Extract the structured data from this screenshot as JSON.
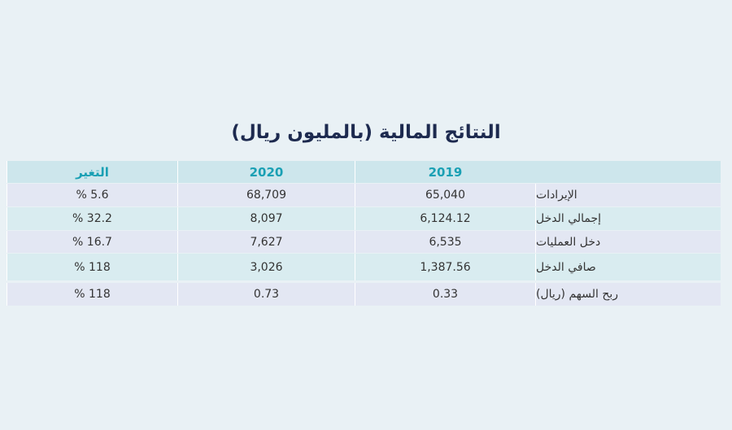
{
  "title": "النتائج المالية (بالمليون ريال)",
  "table": {
    "header": [
      "2019",
      "2020",
      "التغير"
    ],
    "rows": [
      [
        "الإيرادات",
        "65,040",
        "68,709",
        "% 5.6"
      ],
      [
        "إجمالي الدخل",
        "6,124.12",
        "8,097",
        "% 32.2"
      ],
      [
        "دخل العمليات",
        "6,535",
        "7,627",
        "% 16.7"
      ],
      [
        "صافي الدخل",
        "1,387.56",
        "3,026",
        "% 118"
      ],
      [
        "ربح السهم (ريال)",
        "0.33",
        "0.73",
        "% 118"
      ]
    ]
  }
}
